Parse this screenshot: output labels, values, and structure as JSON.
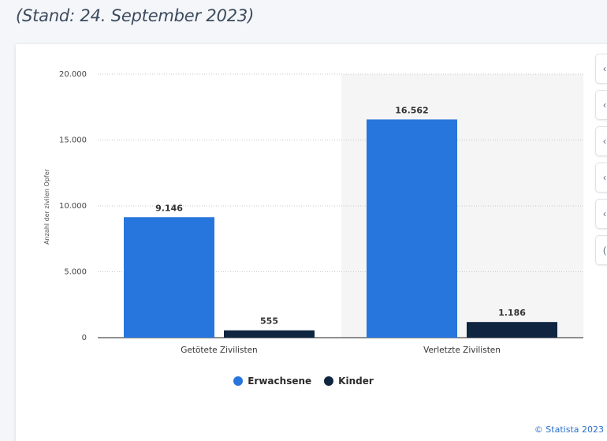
{
  "subtitle": "(Stand: 24. September 2023)",
  "credit": "© Statista 2023",
  "colors": {
    "erwachsene": "#2776dd",
    "kinder": "#0f2540",
    "highlight_bg": "#f5f5f5"
  },
  "icons": [
    "bell-icon",
    "star-icon",
    "settings-icon",
    "download-icon",
    "share-icon",
    "quote-icon"
  ],
  "chart_data": {
    "type": "bar",
    "categories": [
      "Getötete Zivilisten",
      "Verletzte Zivilisten"
    ],
    "series": [
      {
        "name": "Erwachsene",
        "values": [
          9146,
          16562
        ],
        "labels": [
          "9.146",
          "16.562"
        ]
      },
      {
        "name": "Kinder",
        "values": [
          555,
          1186
        ],
        "labels": [
          "555",
          "1.186"
        ]
      }
    ],
    "ylabel": "Anzahl der zivilen Opfer",
    "ylim": [
      0,
      20000
    ],
    "yticks": [
      0,
      5000,
      10000,
      15000,
      20000
    ],
    "ytick_labels": [
      "0",
      "5.000",
      "10.000",
      "15.000",
      "20.000"
    ],
    "grid": true,
    "legend_position": "bottom"
  }
}
